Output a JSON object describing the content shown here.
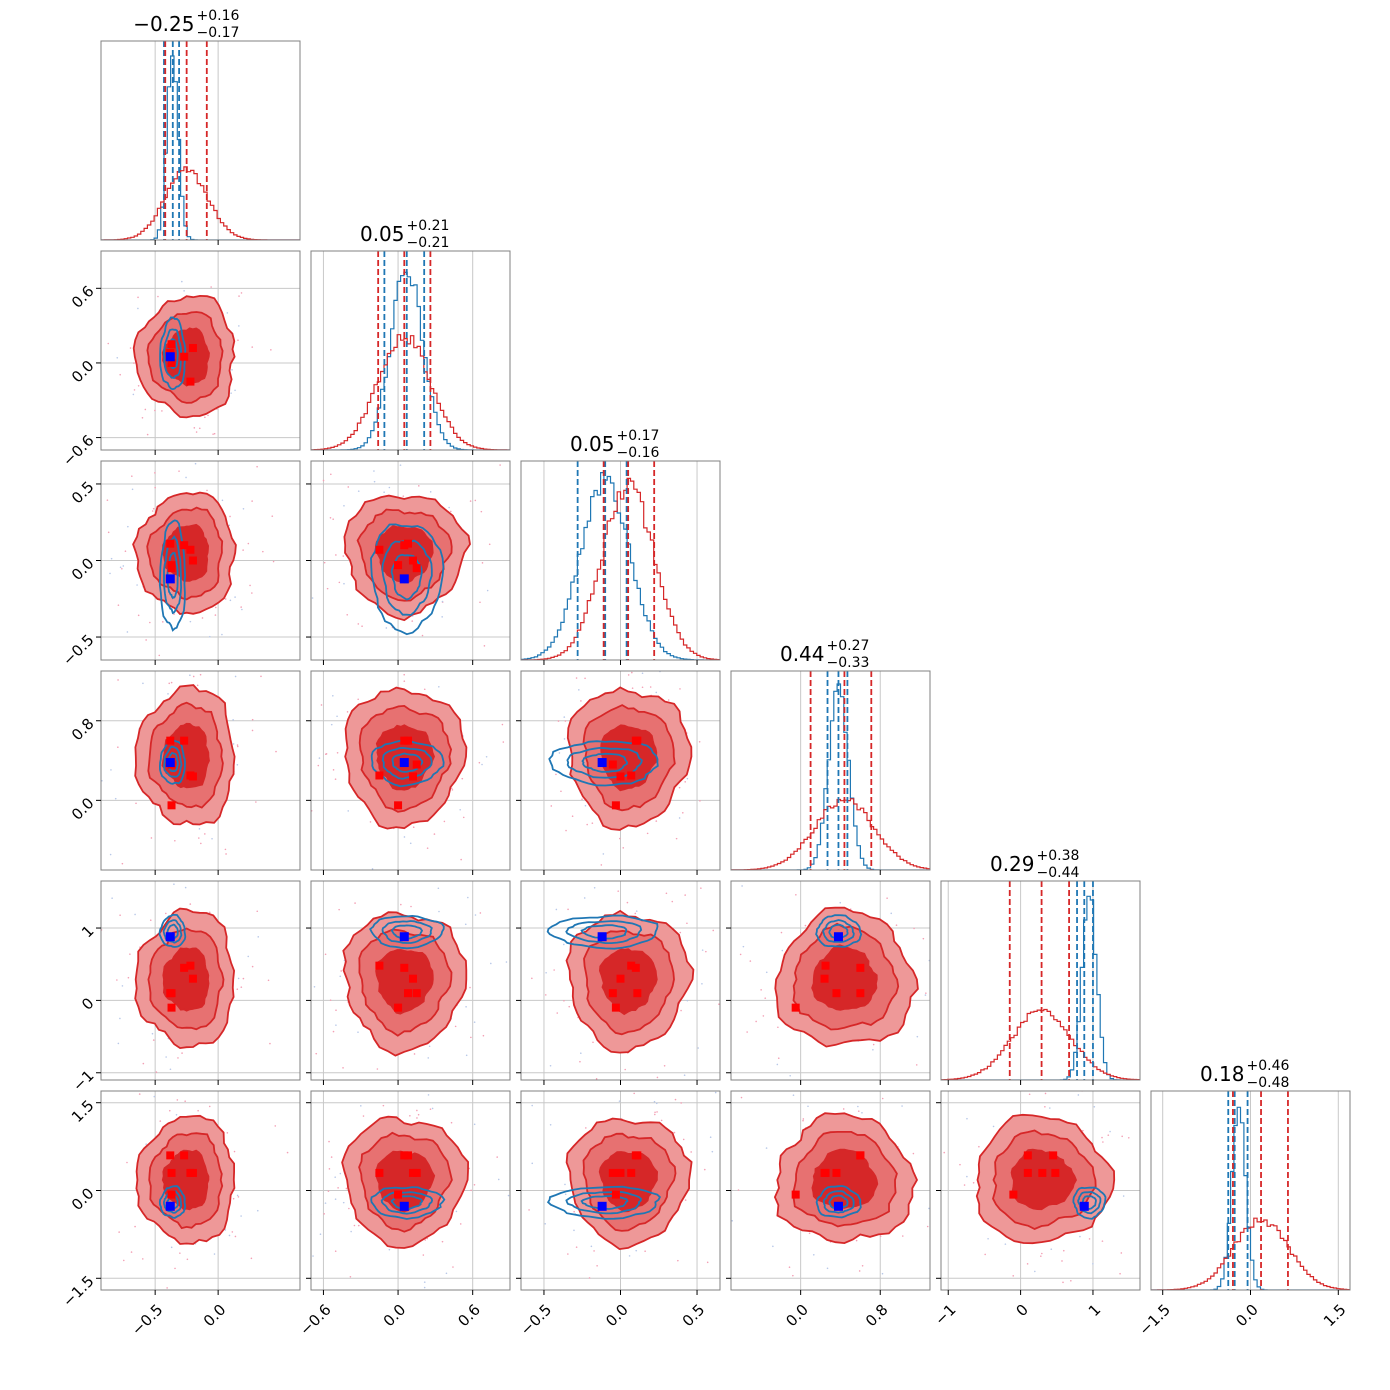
{
  "figure": {
    "type": "corner-plot",
    "n_params": 6,
    "colors": {
      "red_samples": "#d62728",
      "blue_samples": "#1f77b4",
      "red_fill_inner": "#d62728",
      "red_fill_outer": "#ee9898",
      "truth_blue": "#0000ff",
      "truth_red": "#ff0000",
      "grid": "#c8c8c8",
      "frame": "#808080"
    }
  },
  "chart_data": {
    "type": "corner",
    "params": [
      {
        "title_value": "0.25",
        "title_sign": "−",
        "title_plus": "+0.16",
        "title_minus": "−0.17",
        "range": [
          -0.93,
          0.65
        ],
        "ticks": [
          -0.5,
          0.0
        ],
        "tick_labels": [
          "−0.5",
          "0.0"
        ],
        "red_mean": -0.25,
        "red_sd": 0.17,
        "blue_mean": -0.36,
        "blue_sd": 0.045,
        "red_quantiles": [
          -0.42,
          -0.25,
          -0.09
        ],
        "blue_quantiles": [
          -0.43,
          -0.36,
          -0.31
        ],
        "blue_truth": -0.38,
        "red_truths": [
          -0.27,
          -0.37,
          -0.22,
          -0.37,
          -0.38,
          -0.2
        ]
      },
      {
        "title_value": "0.05",
        "title_sign": "",
        "title_plus": "+0.21",
        "title_minus": "−0.21",
        "range": [
          -0.7,
          0.9
        ],
        "ticks": [
          -0.6,
          0.0,
          0.6
        ],
        "tick_labels": [
          "−0.6",
          "0.0",
          "0.6"
        ],
        "red_mean": 0.05,
        "red_sd": 0.21,
        "blue_mean": 0.07,
        "blue_sd": 0.13,
        "red_quantiles": [
          -0.16,
          0.05,
          0.26
        ],
        "blue_quantiles": [
          -0.11,
          0.07,
          0.21
        ],
        "blue_truth": 0.05,
        "red_truths": [
          0.05,
          0.15,
          -0.15,
          0.0,
          0.08,
          0.12
        ]
      },
      {
        "title_value": "0.05",
        "title_sign": "",
        "title_plus": "+0.17",
        "title_minus": "−0.16",
        "range": [
          -0.65,
          0.65
        ],
        "ticks": [
          -0.5,
          0.0,
          0.5
        ],
        "tick_labels": [
          "−0.5",
          "0.0",
          "0.5"
        ],
        "red_mean": 0.05,
        "red_sd": 0.17,
        "blue_mean": -0.1,
        "blue_sd": 0.16,
        "red_quantiles": [
          -0.11,
          0.05,
          0.22
        ],
        "blue_quantiles": [
          -0.28,
          -0.1,
          0.04
        ],
        "blue_truth": -0.12,
        "red_truths": [
          0.1,
          -0.05,
          0.07,
          -0.03,
          0.11,
          0.0
        ]
      },
      {
        "title_value": "0.44",
        "title_sign": "",
        "title_plus": "+0.27",
        "title_minus": "−0.33",
        "range": [
          -0.7,
          1.3
        ],
        "ticks": [
          0.0,
          0.8
        ],
        "tick_labels": [
          "0.0",
          "0.8"
        ],
        "red_mean": 0.44,
        "red_sd": 0.3,
        "blue_mean": 0.38,
        "blue_sd": 0.1,
        "red_quantiles": [
          0.1,
          0.44,
          0.71
        ],
        "blue_quantiles": [
          0.27,
          0.38,
          0.47
        ],
        "blue_truth": 0.38,
        "red_truths": [
          0.6,
          0.36,
          0.25,
          -0.05,
          0.6,
          0.24
        ]
      },
      {
        "title_value": "0.29",
        "title_sign": "",
        "title_plus": "+0.38",
        "title_minus": "−0.44",
        "range": [
          -1.1,
          1.65
        ],
        "ticks": [
          -1,
          0,
          1
        ],
        "tick_labels": [
          "−1",
          "0",
          "1"
        ],
        "red_mean": 0.29,
        "red_sd": 0.41,
        "blue_mean": 0.95,
        "blue_sd": 0.1,
        "red_quantiles": [
          -0.15,
          0.29,
          0.67
        ],
        "blue_quantiles": [
          0.78,
          0.88,
          1.0
        ],
        "blue_truth": 0.88,
        "red_truths": [
          0.45,
          0.1,
          0.48,
          -0.1,
          0.1,
          0.3
        ]
      },
      {
        "title_value": "0.18",
        "title_sign": "",
        "title_plus": "+0.46",
        "title_minus": "−0.48",
        "range": [
          -1.7,
          1.7
        ],
        "ticks": [
          -1.5,
          0.0,
          1.5
        ],
        "tick_labels": [
          "−1.5",
          "0.0",
          "1.5"
        ],
        "red_mean": 0.18,
        "red_sd": 0.47,
        "blue_mean": -0.2,
        "blue_sd": 0.12,
        "red_quantiles": [
          -0.3,
          0.18,
          0.64
        ],
        "blue_quantiles": [
          -0.38,
          -0.27,
          -0.05
        ],
        "blue_truth": -0.27,
        "red_truths": [
          0.6,
          0.3,
          0.3,
          -0.07,
          0.6,
          0.3
        ]
      }
    ],
    "grid": true
  }
}
